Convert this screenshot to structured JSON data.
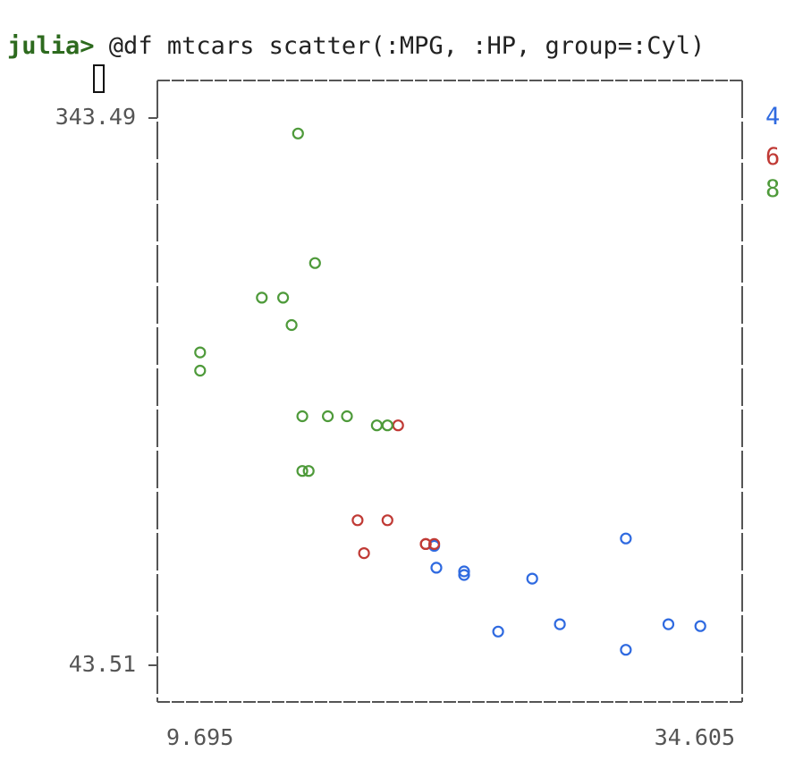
{
  "terminal": {
    "prompt": "julia>",
    "command": " @df mtcars scatter(:MPG, :HP, group=:Cyl)"
  },
  "colors": {
    "prompt": "#2d6a1e",
    "frame": "#555555",
    "4": "#2f6ae0",
    "6": "#c03a35",
    "8": "#4e9a3a"
  },
  "chart_data": {
    "type": "scatter",
    "title": "",
    "xlabel": "",
    "ylabel": "",
    "xlim": [
      9.695,
      34.605
    ],
    "ylim": [
      43.51,
      343.49
    ],
    "x_tick_labels": [
      "9.695",
      "34.605"
    ],
    "y_tick_labels": [
      "343.49",
      "43.51"
    ],
    "legend_position": "right",
    "grid": false,
    "series": [
      {
        "name": "4",
        "points": [
          [
            22.8,
            93
          ],
          [
            24.4,
            62
          ],
          [
            22.8,
            95
          ],
          [
            32.4,
            66
          ],
          [
            30.4,
            52
          ],
          [
            33.9,
            65
          ],
          [
            21.5,
            97
          ],
          [
            27.3,
            66
          ],
          [
            26.0,
            91
          ],
          [
            30.4,
            113
          ],
          [
            21.4,
            109
          ]
        ]
      },
      {
        "name": "6",
        "points": [
          [
            21.0,
            110
          ],
          [
            21.0,
            110
          ],
          [
            21.4,
            110
          ],
          [
            18.1,
            105
          ],
          [
            19.2,
            123
          ],
          [
            17.8,
            123
          ],
          [
            19.7,
            175
          ]
        ]
      },
      {
        "name": "8",
        "points": [
          [
            18.7,
            175
          ],
          [
            14.3,
            245
          ],
          [
            16.4,
            180
          ],
          [
            17.3,
            180
          ],
          [
            15.2,
            180
          ],
          [
            10.4,
            205
          ],
          [
            10.4,
            215
          ],
          [
            14.7,
            230
          ],
          [
            15.5,
            150
          ],
          [
            15.2,
            150
          ],
          [
            13.3,
            245
          ],
          [
            19.2,
            175
          ],
          [
            15.8,
            264
          ],
          [
            15.0,
            335
          ]
        ]
      }
    ]
  }
}
